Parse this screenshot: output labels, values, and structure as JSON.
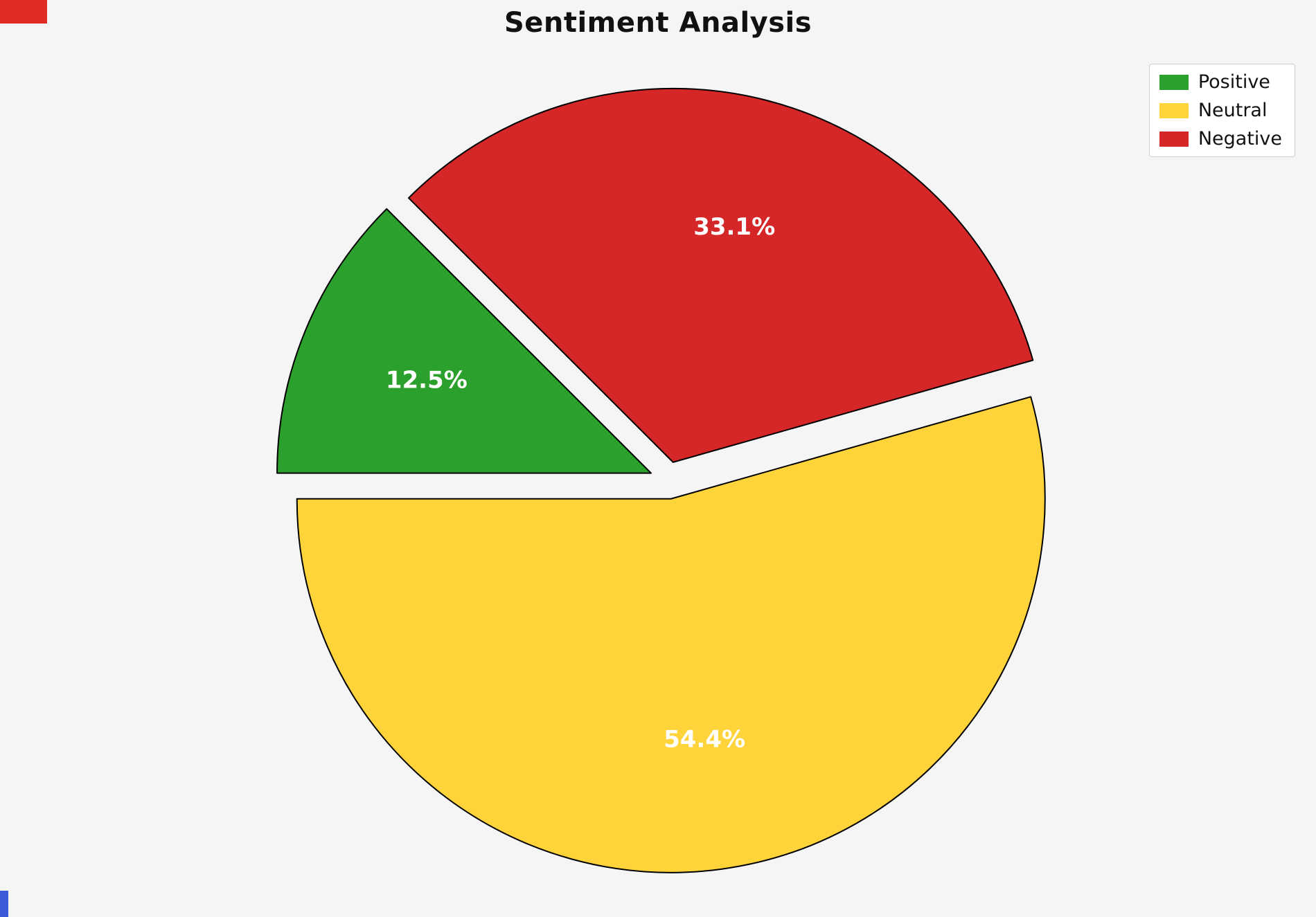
{
  "title": "Sentiment Analysis",
  "chart_data": {
    "type": "pie",
    "title": "Sentiment Analysis",
    "labels": [
      "Positive",
      "Neutral",
      "Negative"
    ],
    "values": [
      12.5,
      54.4,
      33.1
    ],
    "pct_labels": [
      "12.5%",
      "54.4%",
      "33.1%"
    ],
    "colors": [
      "#2ca02c",
      "#ffd43b",
      "#d62728"
    ],
    "edge_color": "#000000",
    "start_angle": 135,
    "direction": "counterclockwise",
    "explode": 0.05,
    "pct_distance": 0.65,
    "legend_position": "upper right",
    "background_color": "#f5f5f6"
  },
  "legend": {
    "items": [
      {
        "label": "Positive"
      },
      {
        "label": "Neutral"
      },
      {
        "label": "Negative"
      }
    ]
  },
  "markers": {
    "top_left_color": "#e02c22",
    "bottom_left_color": "#3b5bdb"
  }
}
